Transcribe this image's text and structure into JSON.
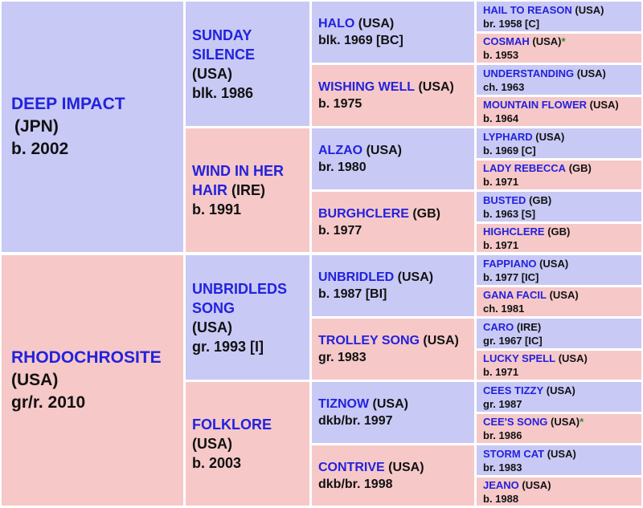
{
  "colors": {
    "sire_bg": "#c8c9f5",
    "dam_bg": "#f6c8c8",
    "name": "#2222dd",
    "text": "#111111",
    "star": "#2e8b2e"
  },
  "subject": {
    "sire": {
      "name": "DEEP IMPACT",
      "nat": "(JPN)",
      "info": "b. 2002"
    },
    "dam": {
      "name": "RHODOCHROSITE",
      "nat": "(USA)",
      "info": "gr/r. 2010"
    }
  },
  "gen1": [
    {
      "name": "SUNDAY SILENCE",
      "nat": "(USA)",
      "info": "blk. 1986"
    },
    {
      "name": "WIND IN HER HAIR",
      "nat": "(IRE)",
      "info": "b. 1991"
    },
    {
      "name": "UNBRIDLEDS SONG",
      "nat": "(USA)",
      "info": "gr. 1993 [I]"
    },
    {
      "name": "FOLKLORE",
      "nat": "(USA)",
      "info": "b. 2003"
    }
  ],
  "gen2": [
    {
      "name": "HALO",
      "nat": "(USA)",
      "info": "blk. 1969 [BC]"
    },
    {
      "name": "WISHING WELL",
      "nat": "(USA)",
      "info": "b. 1975"
    },
    {
      "name": "ALZAO",
      "nat": "(USA)",
      "info": "br. 1980"
    },
    {
      "name": "BURGHCLERE",
      "nat": "(GB)",
      "info": "b. 1977"
    },
    {
      "name": "UNBRIDLED",
      "nat": "(USA)",
      "info": "b. 1987 [BI]"
    },
    {
      "name": "TROLLEY SONG",
      "nat": "(USA)",
      "info": "gr. 1983"
    },
    {
      "name": "TIZNOW",
      "nat": "(USA)",
      "info": "dkb/br. 1997"
    },
    {
      "name": "CONTRIVE",
      "nat": "(USA)",
      "info": "dkb/br. 1998"
    }
  ],
  "gen3": [
    {
      "name": "HAIL TO REASON",
      "nat": "(USA)",
      "info": "br. 1958 [C]",
      "star": ""
    },
    {
      "name": "COSMAH",
      "nat": "(USA)",
      "info": "b. 1953",
      "star": "*"
    },
    {
      "name": "UNDERSTANDING",
      "nat": "(USA)",
      "info": "ch. 1963",
      "star": ""
    },
    {
      "name": "MOUNTAIN FLOWER",
      "nat": "(USA)",
      "info": "b. 1964",
      "star": ""
    },
    {
      "name": "LYPHARD",
      "nat": "(USA)",
      "info": "b. 1969 [C]",
      "star": ""
    },
    {
      "name": "LADY REBECCA",
      "nat": "(GB)",
      "info": "b. 1971",
      "star": ""
    },
    {
      "name": "BUSTED",
      "nat": "(GB)",
      "info": "b. 1963 [S]",
      "star": ""
    },
    {
      "name": "HIGHCLERE",
      "nat": "(GB)",
      "info": "b. 1971",
      "star": ""
    },
    {
      "name": "FAPPIANO",
      "nat": "(USA)",
      "info": "b. 1977 [IC]",
      "star": ""
    },
    {
      "name": "GANA FACIL",
      "nat": "(USA)",
      "info": "ch. 1981",
      "star": ""
    },
    {
      "name": "CARO",
      "nat": "(IRE)",
      "info": "gr. 1967 [IC]",
      "star": ""
    },
    {
      "name": "LUCKY SPELL",
      "nat": "(USA)",
      "info": "b. 1971",
      "star": ""
    },
    {
      "name": "CEES TIZZY",
      "nat": "(USA)",
      "info": "gr. 1987",
      "star": ""
    },
    {
      "name": "CEE'S SONG",
      "nat": "(USA)",
      "info": "br. 1986",
      "star": "*"
    },
    {
      "name": "STORM CAT",
      "nat": "(USA)",
      "info": "br. 1983",
      "star": ""
    },
    {
      "name": "JEANO",
      "nat": "(USA)",
      "info": "b. 1988",
      "star": ""
    }
  ]
}
